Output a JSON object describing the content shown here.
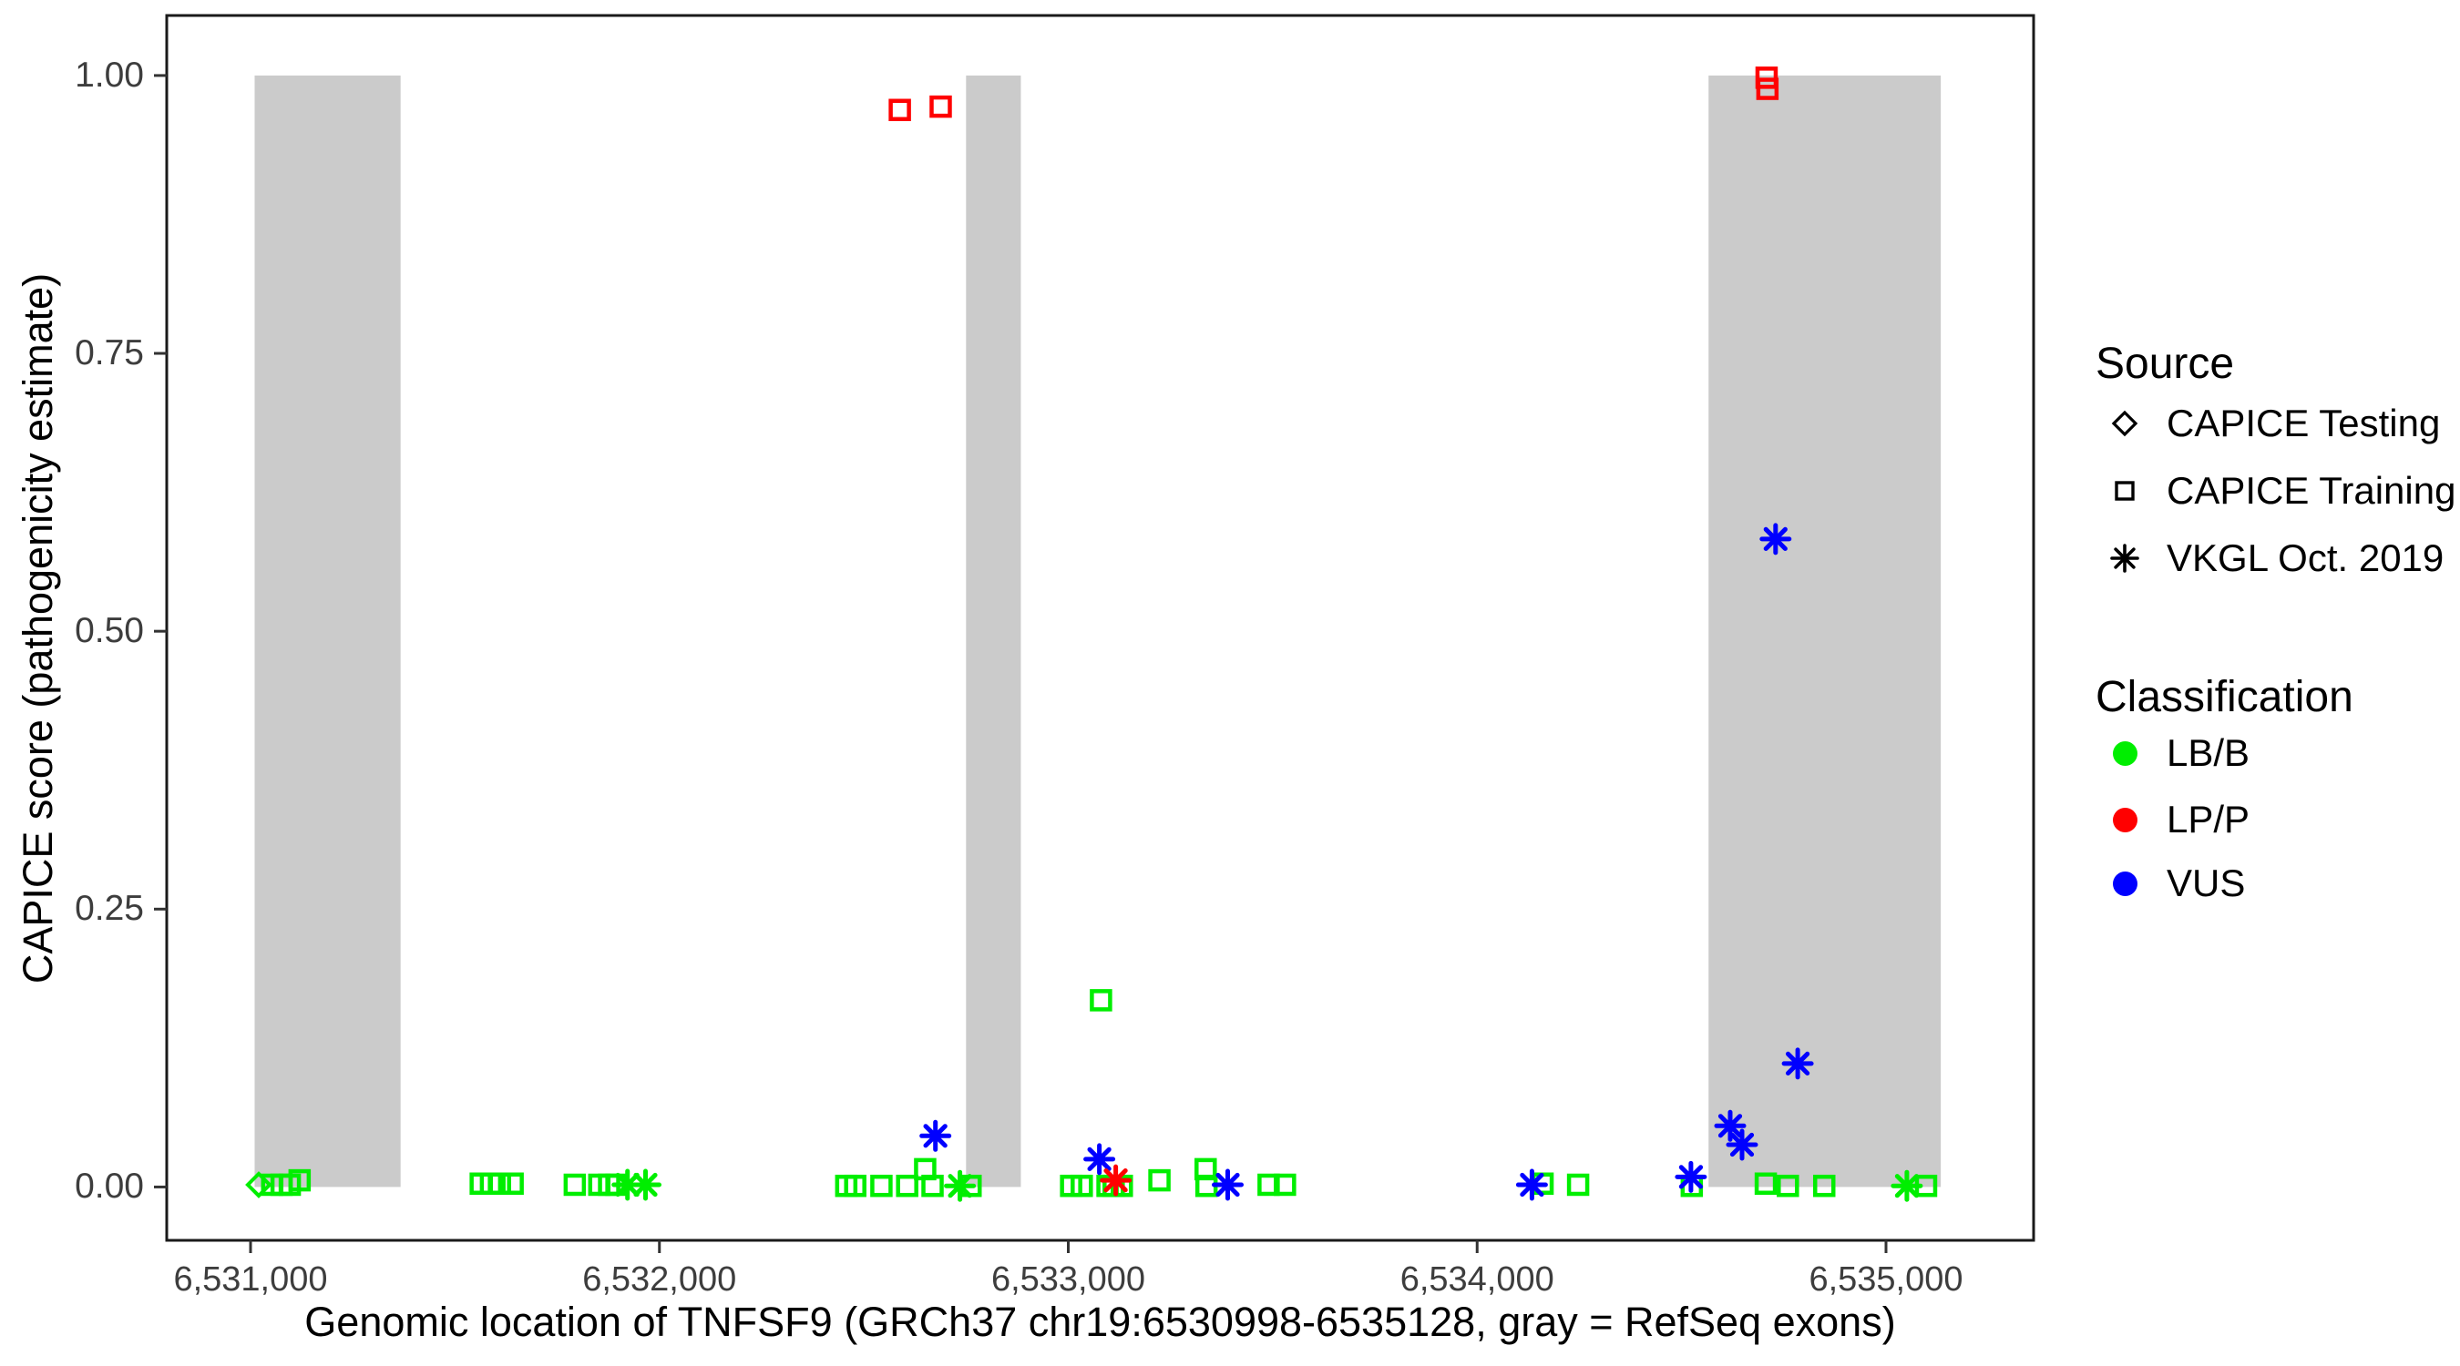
{
  "figure": {
    "x_axis_title": "Genomic location of TNFSF9 (GRCh37 chr19:6530998-6535128, gray = RefSeq exons)",
    "y_axis_title": "CAPICE score (pathogenicity estimate)"
  },
  "legend": {
    "source": {
      "title": "Source",
      "items": [
        {
          "shape": "diamond",
          "label": "CAPICE Testing"
        },
        {
          "shape": "square",
          "label": "CAPICE Training"
        },
        {
          "shape": "asterisk",
          "label": "VKGL Oct. 2019"
        }
      ]
    },
    "classification": {
      "title": "Classification",
      "items": [
        {
          "color": "#00ee00",
          "label": "LB/B"
        },
        {
          "color": "#ff0000",
          "label": "LP/P"
        },
        {
          "color": "#0000ff",
          "label": "VUS"
        }
      ]
    }
  },
  "chart_data": {
    "type": "scatter",
    "xlabel": "Genomic location of TNFSF9 (GRCh37 chr19:6530998-6535128, gray = RefSeq exons)",
    "ylabel": "CAPICE score (pathogenicity estimate)",
    "x_domain": [
      6530795,
      6535361
    ],
    "y_domain": [
      -0.048,
      1.054
    ],
    "x_ticks": [
      {
        "value": 6531000,
        "label": "6,531,000"
      },
      {
        "value": 6532000,
        "label": "6,532,000"
      },
      {
        "value": 6533000,
        "label": "6,533,000"
      },
      {
        "value": 6534000,
        "label": "6,534,000"
      },
      {
        "value": 6535000,
        "label": "6,535,000"
      }
    ],
    "y_ticks": [
      {
        "value": 0.0,
        "label": "0.00"
      },
      {
        "value": 0.25,
        "label": "0.25"
      },
      {
        "value": 0.5,
        "label": "0.50"
      },
      {
        "value": 0.75,
        "label": "0.75"
      },
      {
        "value": 1.0,
        "label": "1.00"
      }
    ],
    "grid": "off",
    "legend_position": "right",
    "exon_note": "gray rectangles = RefSeq exons, drawn from score 0 to score 1",
    "exons_gray": [
      [
        6531010,
        6531367
      ],
      [
        6532750,
        6532884
      ],
      [
        6534566,
        6535134
      ]
    ],
    "exon_fill": "#cbcbcb",
    "class_colors": {
      "LB/B": "#00ee00",
      "LP/P": "#ff0000",
      "VUS": "#0000ff"
    },
    "source_shapes": {
      "CAPICE Testing": "diamond",
      "CAPICE Training": "square",
      "VKGL Oct. 2019": "asterisk"
    },
    "points": [
      {
        "x": 6531020,
        "y": 0.002,
        "source": "CAPICE Testing",
        "class": "LB/B"
      },
      {
        "x": 6531053,
        "y": 0.002,
        "source": "CAPICE Training",
        "class": "LB/B"
      },
      {
        "x": 6531076,
        "y": 0.002,
        "source": "CAPICE Training",
        "class": "LB/B"
      },
      {
        "x": 6531096,
        "y": 0.002,
        "source": "CAPICE Training",
        "class": "LB/B"
      },
      {
        "x": 6531120,
        "y": 0.006,
        "source": "CAPICE Training",
        "class": "LB/B"
      },
      {
        "x": 6531563,
        "y": 0.003,
        "source": "CAPICE Training",
        "class": "LB/B"
      },
      {
        "x": 6531588,
        "y": 0.003,
        "source": "CAPICE Training",
        "class": "LB/B"
      },
      {
        "x": 6531610,
        "y": 0.003,
        "source": "CAPICE Training",
        "class": "LB/B"
      },
      {
        "x": 6531641,
        "y": 0.003,
        "source": "CAPICE Training",
        "class": "LB/B"
      },
      {
        "x": 6531793,
        "y": 0.002,
        "source": "CAPICE Training",
        "class": "LB/B"
      },
      {
        "x": 6531853,
        "y": 0.002,
        "source": "CAPICE Training",
        "class": "LB/B"
      },
      {
        "x": 6531877,
        "y": 0.002,
        "source": "CAPICE Training",
        "class": "LB/B"
      },
      {
        "x": 6531895,
        "y": 0.002,
        "source": "CAPICE Training",
        "class": "LB/B"
      },
      {
        "x": 6531922,
        "y": 0.002,
        "source": "VKGL Oct. 2019",
        "class": "LB/B"
      },
      {
        "x": 6531966,
        "y": 0.002,
        "source": "VKGL Oct. 2019",
        "class": "LB/B"
      },
      {
        "x": 6532457,
        "y": 0.001,
        "source": "CAPICE Training",
        "class": "LB/B"
      },
      {
        "x": 6532479,
        "y": 0.001,
        "source": "CAPICE Training",
        "class": "LB/B"
      },
      {
        "x": 6532543,
        "y": 0.001,
        "source": "CAPICE Training",
        "class": "LB/B"
      },
      {
        "x": 6532588,
        "y": 0.969,
        "source": "CAPICE Training",
        "class": "LP/P"
      },
      {
        "x": 6532606,
        "y": 0.001,
        "source": "CAPICE Training",
        "class": "LB/B"
      },
      {
        "x": 6532650,
        "y": 0.016,
        "source": "CAPICE Training",
        "class": "LB/B"
      },
      {
        "x": 6532668,
        "y": 0.001,
        "source": "CAPICE Training",
        "class": "LB/B"
      },
      {
        "x": 6532675,
        "y": 0.046,
        "source": "VKGL Oct. 2019",
        "class": "VUS"
      },
      {
        "x": 6532688,
        "y": 0.972,
        "source": "CAPICE Training",
        "class": "LP/P"
      },
      {
        "x": 6532735,
        "y": 0.001,
        "source": "VKGL Oct. 2019",
        "class": "LB/B"
      },
      {
        "x": 6532761,
        "y": 0.001,
        "source": "CAPICE Training",
        "class": "LB/B"
      },
      {
        "x": 6533007,
        "y": 0.001,
        "source": "CAPICE Training",
        "class": "LB/B"
      },
      {
        "x": 6533033,
        "y": 0.001,
        "source": "CAPICE Training",
        "class": "LB/B"
      },
      {
        "x": 6533076,
        "y": 0.025,
        "source": "VKGL Oct. 2019",
        "class": "VUS"
      },
      {
        "x": 6533080,
        "y": 0.168,
        "source": "CAPICE Training",
        "class": "LB/B"
      },
      {
        "x": 6533096,
        "y": 0.001,
        "source": "CAPICE Training",
        "class": "LB/B"
      },
      {
        "x": 6533111,
        "y": 0.001,
        "source": "CAPICE Training",
        "class": "LB/B"
      },
      {
        "x": 6533116,
        "y": 0.006,
        "source": "VKGL Oct. 2019",
        "class": "LP/P"
      },
      {
        "x": 6533131,
        "y": 0.001,
        "source": "CAPICE Training",
        "class": "LB/B"
      },
      {
        "x": 6533223,
        "y": 0.006,
        "source": "CAPICE Training",
        "class": "LB/B"
      },
      {
        "x": 6533336,
        "y": 0.016,
        "source": "CAPICE Training",
        "class": "LB/B"
      },
      {
        "x": 6533338,
        "y": 0.001,
        "source": "CAPICE Training",
        "class": "LB/B"
      },
      {
        "x": 6533390,
        "y": 0.002,
        "source": "VKGL Oct. 2019",
        "class": "VUS"
      },
      {
        "x": 6533490,
        "y": 0.002,
        "source": "CAPICE Training",
        "class": "LB/B"
      },
      {
        "x": 6533530,
        "y": 0.002,
        "source": "CAPICE Training",
        "class": "LB/B"
      },
      {
        "x": 6534134,
        "y": 0.002,
        "source": "VKGL Oct. 2019",
        "class": "VUS"
      },
      {
        "x": 6534160,
        "y": 0.003,
        "source": "CAPICE Training",
        "class": "LB/B"
      },
      {
        "x": 6534247,
        "y": 0.002,
        "source": "CAPICE Training",
        "class": "LB/B"
      },
      {
        "x": 6534523,
        "y": 0.009,
        "source": "VKGL Oct. 2019",
        "class": "VUS"
      },
      {
        "x": 6534525,
        "y": 0.001,
        "source": "CAPICE Training",
        "class": "LB/B"
      },
      {
        "x": 6534619,
        "y": 0.055,
        "source": "VKGL Oct. 2019",
        "class": "VUS"
      },
      {
        "x": 6534648,
        "y": 0.038,
        "source": "VKGL Oct. 2019",
        "class": "VUS"
      },
      {
        "x": 6534706,
        "y": 0.003,
        "source": "CAPICE Training",
        "class": "LB/B"
      },
      {
        "x": 6534708,
        "y": 0.998,
        "source": "CAPICE Training",
        "class": "LP/P"
      },
      {
        "x": 6534710,
        "y": 0.988,
        "source": "CAPICE Training",
        "class": "LP/P"
      },
      {
        "x": 6534730,
        "y": 0.583,
        "source": "VKGL Oct. 2019",
        "class": "VUS"
      },
      {
        "x": 6534760,
        "y": 0.001,
        "source": "CAPICE Training",
        "class": "LB/B"
      },
      {
        "x": 6534784,
        "y": 0.111,
        "source": "VKGL Oct. 2019",
        "class": "VUS"
      },
      {
        "x": 6534849,
        "y": 0.001,
        "source": "CAPICE Training",
        "class": "LB/B"
      },
      {
        "x": 6535051,
        "y": 0.001,
        "source": "VKGL Oct. 2019",
        "class": "LB/B"
      },
      {
        "x": 6535098,
        "y": 0.001,
        "source": "CAPICE Training",
        "class": "LB/B"
      }
    ]
  }
}
